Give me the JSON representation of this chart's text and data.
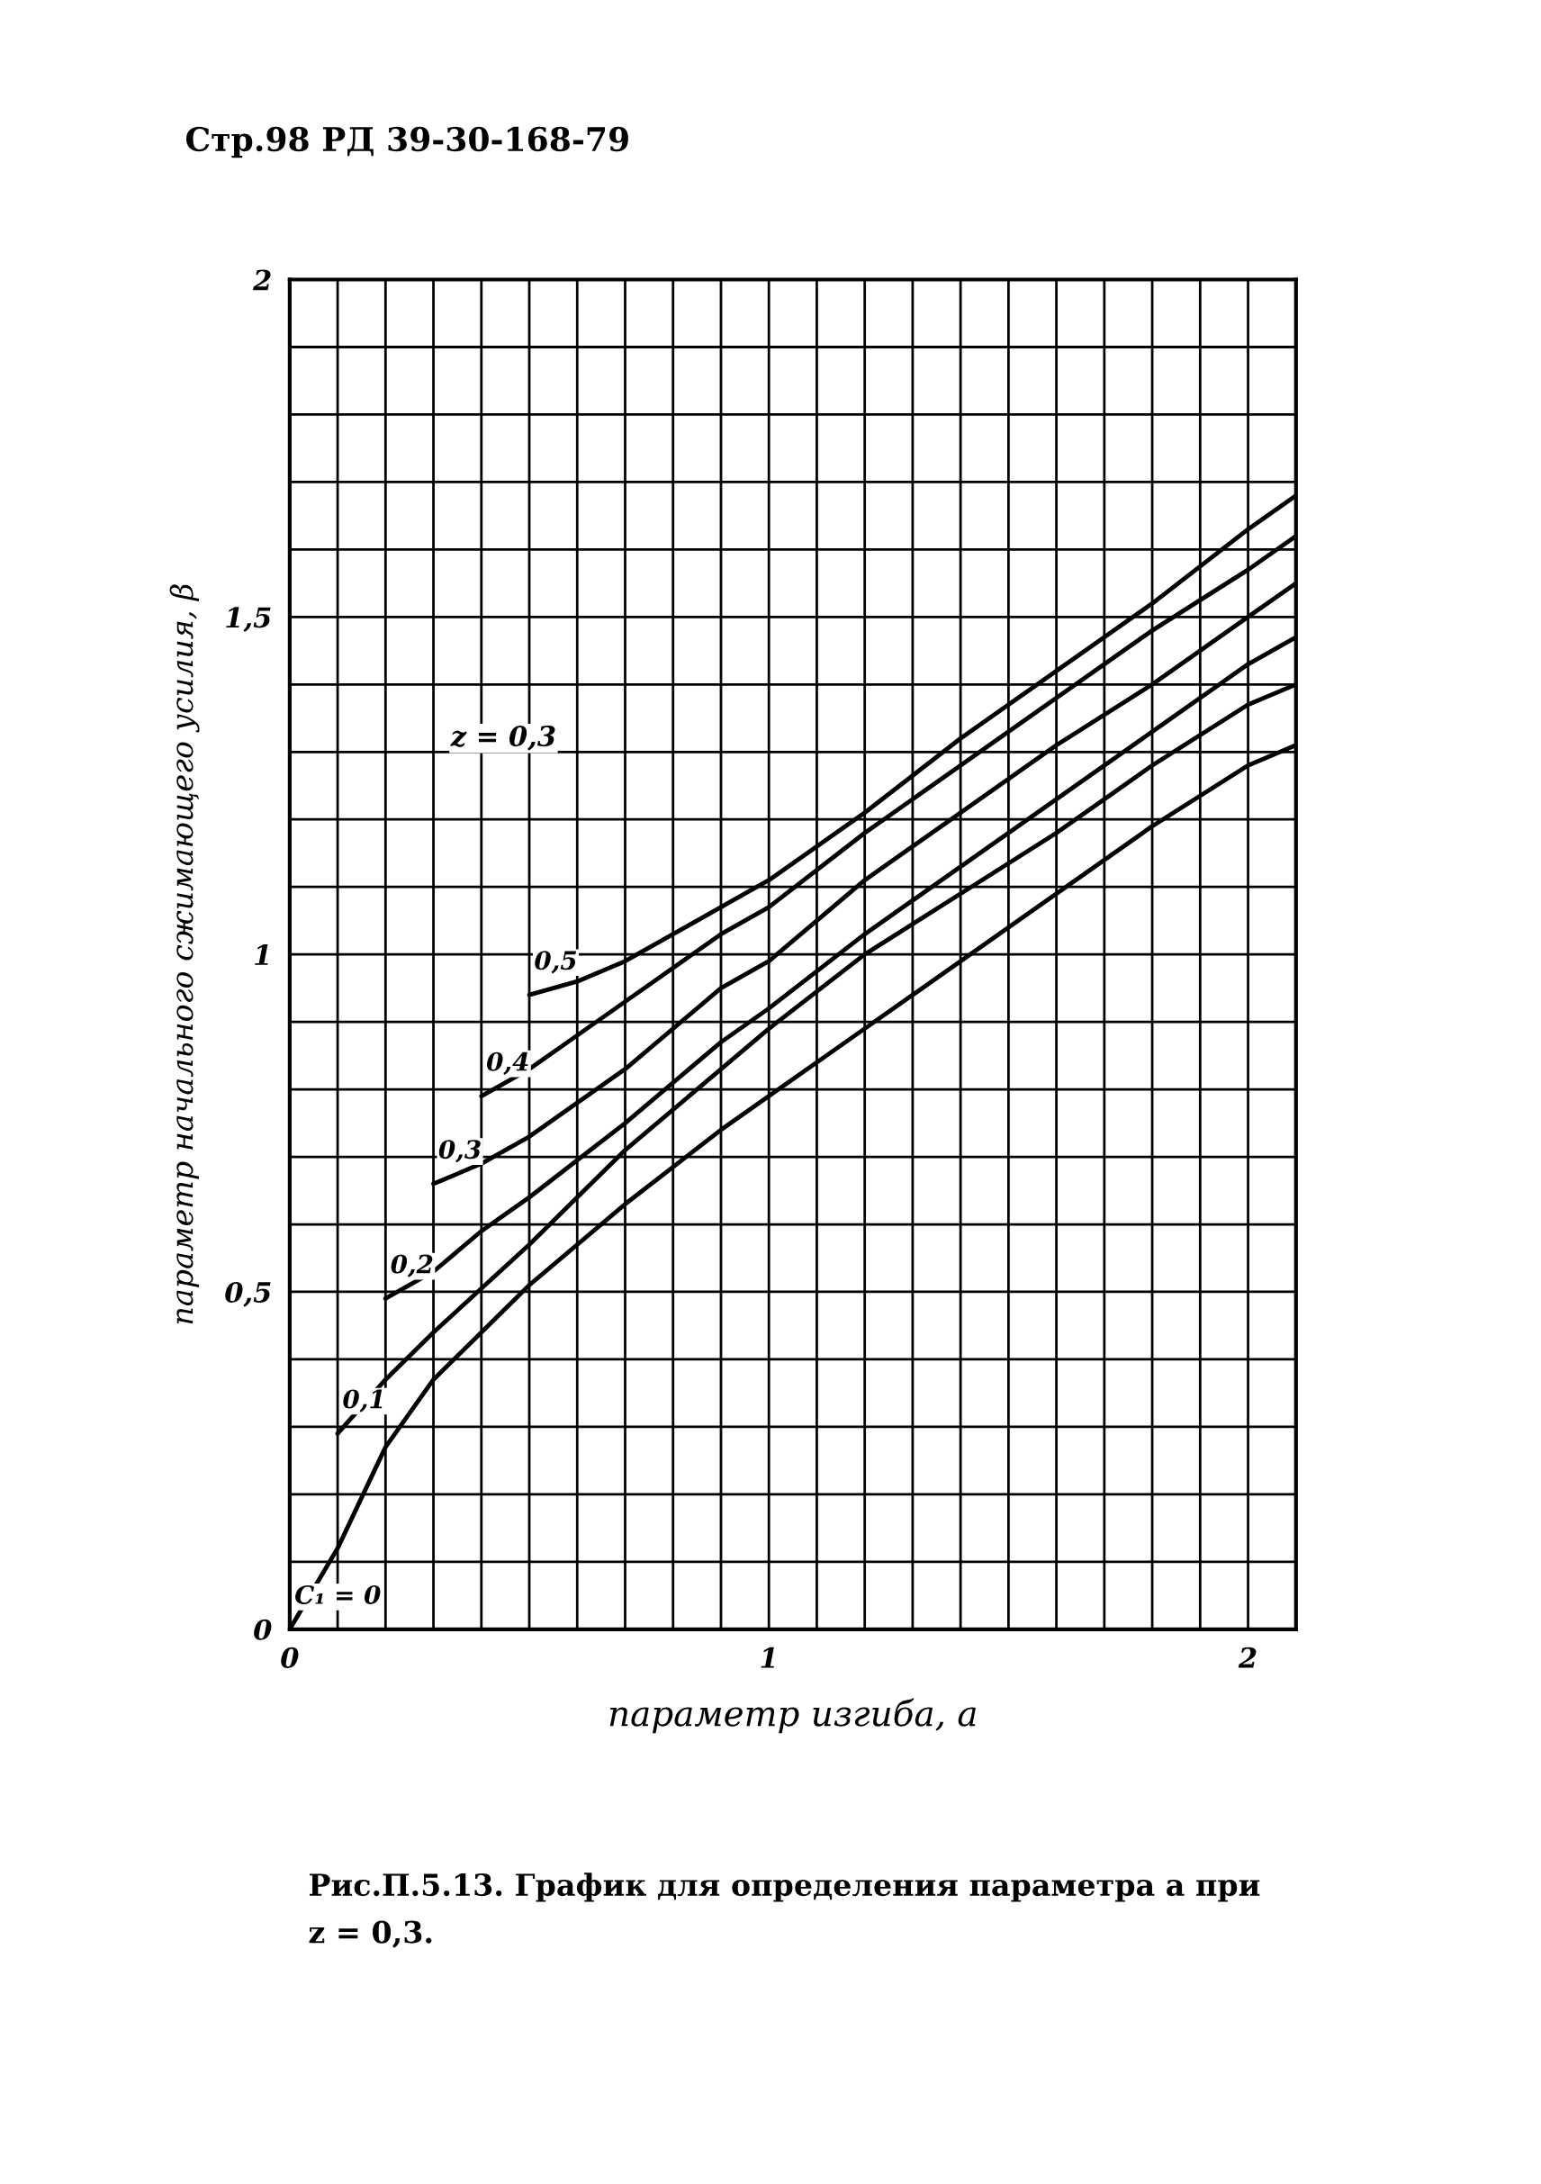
{
  "chart_data": {
    "type": "line",
    "xlabel": "параметр изгиба, a",
    "ylabel": "параметр начального сжимающего усилия, β",
    "annotations": [
      "Стр.98 РД 39-30-168-79",
      "Рис.П.5.13. График для определения параметра a при\nz = 0,3.",
      "z = 0,3"
    ],
    "xlim": [
      0,
      2.1
    ],
    "ylim": [
      0,
      2
    ],
    "xticks": [
      0,
      {
        "value": 0.1,
        "label": null
      },
      {
        "value": 0.2,
        "label": null
      },
      {
        "value": 0.3,
        "label": null
      },
      {
        "value": 0.4,
        "label": null
      },
      {
        "value": 0.5,
        "label": null
      },
      {
        "value": 0.6,
        "label": null
      },
      {
        "value": 0.7,
        "label": null
      },
      {
        "value": 0.8,
        "label": null
      },
      {
        "value": 0.9,
        "label": null
      },
      1,
      {
        "value": 1.1,
        "label": null
      },
      {
        "value": 1.2,
        "label": null
      },
      {
        "value": 1.3,
        "label": null
      },
      {
        "value": 1.4,
        "label": null
      },
      {
        "value": 1.5,
        "label": null
      },
      {
        "value": 1.6,
        "label": null
      },
      {
        "value": 1.7,
        "label": null
      },
      {
        "value": 1.8,
        "label": null
      },
      {
        "value": 1.9,
        "label": null
      },
      2
    ],
    "yticks": [
      0,
      {
        "value": 0.1,
        "label": null
      },
      {
        "value": 0.2,
        "label": null
      },
      {
        "value": 0.3,
        "label": null
      },
      {
        "value": 0.4,
        "label": null
      },
      {
        "value": 0.5,
        "label": "0,5"
      },
      {
        "value": 0.6,
        "label": null
      },
      {
        "value": 0.7,
        "label": null
      },
      {
        "value": 0.8,
        "label": null
      },
      {
        "value": 0.9,
        "label": null
      },
      1,
      {
        "value": 1.1,
        "label": null
      },
      {
        "value": 1.2,
        "label": null
      },
      {
        "value": 1.3,
        "label": null
      },
      {
        "value": 1.4,
        "label": null
      },
      {
        "value": 1.5,
        "label": "1,5"
      },
      {
        "value": 1.6,
        "label": null
      },
      {
        "value": 1.7,
        "label": null
      },
      {
        "value": 1.8,
        "label": null
      },
      {
        "value": 1.9,
        "label": null
      },
      2
    ],
    "grid": true,
    "legend": false,
    "line_style": "solid",
    "series": [
      {
        "name": "C₁ = 0",
        "color": "#000000",
        "x": [
          0,
          0.1,
          0.2,
          0.3,
          0.4,
          0.5,
          0.7,
          0.9,
          1.0,
          1.2,
          1.4,
          1.6,
          1.8,
          2.0,
          2.1
        ],
        "values": [
          0,
          0.12,
          0.27,
          0.37,
          0.44,
          0.51,
          0.63,
          0.74,
          0.79,
          0.89,
          0.99,
          1.09,
          1.19,
          1.28,
          1.31
        ]
      },
      {
        "name": "0,1",
        "color": "#000000",
        "x": [
          0.1,
          0.2,
          0.3,
          0.5,
          0.7,
          0.9,
          1.0,
          1.2,
          1.4,
          1.6,
          1.8,
          2.0,
          2.1
        ],
        "values": [
          0.29,
          0.37,
          0.44,
          0.57,
          0.71,
          0.83,
          0.89,
          1.0,
          1.09,
          1.18,
          1.28,
          1.37,
          1.4
        ]
      },
      {
        "name": "0,2",
        "color": "#000000",
        "x": [
          0.2,
          0.3,
          0.4,
          0.5,
          0.7,
          0.9,
          1.0,
          1.2,
          1.4,
          1.6,
          1.8,
          2.0,
          2.1
        ],
        "values": [
          0.49,
          0.53,
          0.59,
          0.64,
          0.75,
          0.87,
          0.92,
          1.03,
          1.13,
          1.23,
          1.33,
          1.43,
          1.47
        ]
      },
      {
        "name": "0,3",
        "color": "#000000",
        "x": [
          0.3,
          0.4,
          0.5,
          0.7,
          0.9,
          1.0,
          1.2,
          1.4,
          1.6,
          1.8,
          2.0,
          2.1
        ],
        "values": [
          0.66,
          0.69,
          0.73,
          0.83,
          0.95,
          0.99,
          1.11,
          1.21,
          1.31,
          1.4,
          1.5,
          1.55
        ]
      },
      {
        "name": "0,4",
        "color": "#000000",
        "x": [
          0.4,
          0.5,
          0.6,
          0.7,
          0.9,
          1.0,
          1.2,
          1.4,
          1.6,
          1.8,
          2.0,
          2.1
        ],
        "values": [
          0.79,
          0.83,
          0.88,
          0.93,
          1.03,
          1.07,
          1.18,
          1.28,
          1.38,
          1.48,
          1.57,
          1.62
        ]
      },
      {
        "name": "0,5",
        "color": "#000000",
        "x": [
          0.5,
          0.6,
          0.7,
          0.8,
          0.9,
          1.0,
          1.2,
          1.4,
          1.6,
          1.8,
          2.0,
          2.1
        ],
        "values": [
          0.94,
          0.96,
          0.99,
          1.03,
          1.07,
          1.11,
          1.21,
          1.32,
          1.42,
          1.52,
          1.63,
          1.68
        ]
      }
    ]
  }
}
